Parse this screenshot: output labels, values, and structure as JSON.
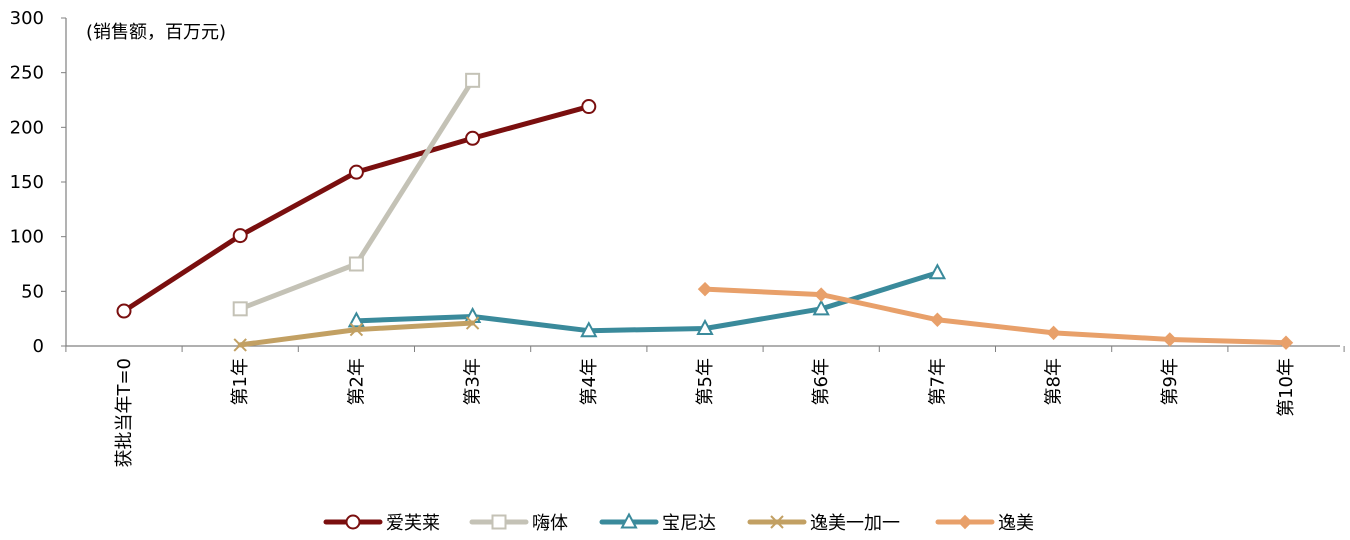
{
  "chart_data": {
    "type": "line",
    "ylabel": "(销售额，百万元)",
    "ylim": [
      0,
      300
    ],
    "yticks": [
      0,
      50,
      100,
      150,
      200,
      250,
      300
    ],
    "grid": false,
    "legend_position": "bottom",
    "categories": [
      "获批当年T=0",
      "第1年",
      "第2年",
      "第3年",
      "第4年",
      "第5年",
      "第6年",
      "第7年",
      "第8年",
      "第9年",
      "第10年"
    ],
    "series": [
      {
        "name": "爱芙莱",
        "color": "#7a0f0f",
        "marker": "circle",
        "values": [
          32,
          101,
          159,
          190,
          219,
          null,
          null,
          null,
          null,
          null,
          null
        ]
      },
      {
        "name": "嗨体",
        "color": "#c4c2b6",
        "marker": "square",
        "values": [
          null,
          34,
          75,
          243,
          null,
          null,
          null,
          null,
          null,
          null,
          null
        ]
      },
      {
        "name": "宝尼达",
        "color": "#3a8a9b",
        "marker": "triangle",
        "values": [
          null,
          null,
          23,
          27,
          14,
          16,
          34,
          67,
          null,
          null,
          null
        ]
      },
      {
        "name": "逸美一加一",
        "color": "#c2a063",
        "marker": "x",
        "values": [
          null,
          1,
          15,
          21,
          null,
          null,
          null,
          null,
          null,
          null,
          null
        ]
      },
      {
        "name": "逸美",
        "color": "#e8a06a",
        "marker": "diamond",
        "values": [
          null,
          null,
          null,
          null,
          null,
          52,
          47,
          24,
          12,
          6,
          3
        ]
      }
    ]
  }
}
